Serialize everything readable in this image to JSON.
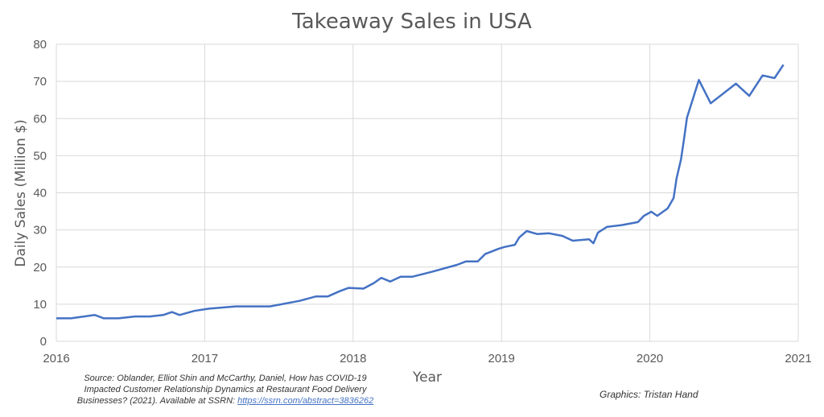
{
  "chart_data": {
    "type": "line",
    "title": "Takeaway Sales in USA",
    "xlabel": "Year",
    "ylabel": "Daily Sales (Million $)",
    "xlim": [
      2016,
      2021
    ],
    "ylim": [
      0,
      80
    ],
    "xticks": [
      "2016",
      "2017",
      "2018",
      "2019",
      "2020",
      "2021"
    ],
    "yticks": [
      "0",
      "10",
      "20",
      "30",
      "40",
      "50",
      "60",
      "70",
      "80"
    ],
    "grid": true,
    "line_color": "#4472c4",
    "series": [
      {
        "x": [
          2016.0,
          2016.1,
          2016.26,
          2016.32,
          2016.42,
          2016.53,
          2016.63,
          2016.72,
          2016.78,
          2016.83,
          2016.93,
          2017.03,
          2017.21,
          2017.44,
          2017.64,
          2017.75,
          2017.83,
          2017.91,
          2017.97,
          2018.07,
          2018.14,
          2018.19,
          2018.25,
          2018.32,
          2018.4,
          2018.53,
          2018.7,
          2018.76,
          2018.84,
          2018.89,
          2018.98,
          2019.02,
          2019.09,
          2019.12,
          2019.17,
          2019.24,
          2019.32,
          2019.41,
          2019.48,
          2019.59,
          2019.62,
          2019.65,
          2019.71,
          2019.81,
          2019.92,
          2019.96,
          2020.01,
          2020.05,
          2020.12,
          2020.16,
          2020.18,
          2020.21,
          2020.23,
          2020.25,
          2020.33,
          2020.41,
          2020.58,
          2020.67,
          2020.76,
          2020.84,
          2020.9
        ],
        "y": [
          6.2,
          6.2,
          7.1,
          6.2,
          6.2,
          6.7,
          6.7,
          7.1,
          7.9,
          7.1,
          8.2,
          8.8,
          9.4,
          9.4,
          10.9,
          12.1,
          12.1,
          13.5,
          14.4,
          14.2,
          15.7,
          17.1,
          16.1,
          17.4,
          17.4,
          18.7,
          20.6,
          21.5,
          21.5,
          23.5,
          24.9,
          25.4,
          26.0,
          28.0,
          29.7,
          28.9,
          29.1,
          28.4,
          27.1,
          27.5,
          26.4,
          29.3,
          30.8,
          31.3,
          32.1,
          33.8,
          34.9,
          33.8,
          35.8,
          38.6,
          43.9,
          49.0,
          54.4,
          60.2,
          70.4,
          64.1,
          69.4,
          66.1,
          71.6,
          70.9,
          74.5
        ]
      }
    ]
  },
  "footer": {
    "source_line1": "Source: Oblander, Elliot Shin and McCarthy, Daniel, How has COVID-19",
    "source_line2": "Impacted Customer Relationship Dynamics at Restaurant Food Delivery",
    "source_line3": "Businesses? (2021). Available at SSRN: ",
    "source_link": "https://ssrn.com/abstract=3836262",
    "credit": "Graphics: Tristan Hand"
  }
}
